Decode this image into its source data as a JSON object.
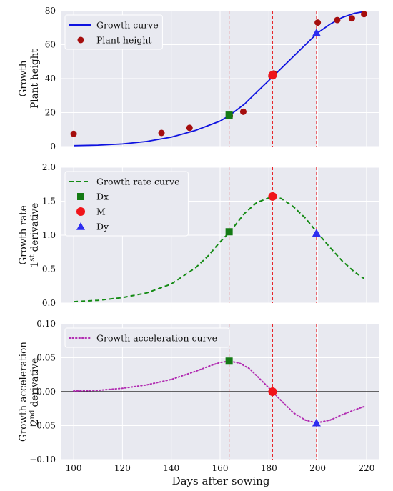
{
  "figure": {
    "xlabel": "Days after sowing",
    "x_ticks": [
      100,
      120,
      140,
      160,
      180,
      200,
      220
    ],
    "xlim": [
      95,
      225
    ],
    "vlines": [
      163.7,
      181.5,
      199.5
    ],
    "colors": {
      "axes_bg": "#E8E9F0",
      "grid": "#FFFFFF",
      "vline": "#E8151B",
      "growth_curve": "#0E12E0",
      "plant_height": "#A50E0E",
      "rate_curve": "#138A13",
      "accel_curve": "#B12BB1",
      "dx_marker": "#147A14",
      "m_marker": "#F0141A",
      "dy_marker": "#2D2DF0",
      "zero_line": "#111111"
    }
  },
  "chart_data": [
    {
      "type": "line",
      "ylabel_lines": [
        "Growth",
        "Plant height"
      ],
      "ylim": [
        0,
        80
      ],
      "y_ticks": [
        "0",
        "20",
        "40",
        "60",
        "80"
      ],
      "y_tick_values": [
        0,
        20,
        40,
        60,
        80
      ],
      "legend": [
        {
          "label": "Growth curve",
          "kind": "line-solid",
          "color_key": "growth_curve"
        },
        {
          "label": "Plant height",
          "kind": "dot",
          "color_key": "plant_height"
        }
      ],
      "series": [
        {
          "name": "Growth curve",
          "style": "solid",
          "color_key": "growth_curve",
          "x": [
            100,
            110,
            120,
            130,
            140,
            150,
            160,
            164,
            170,
            175,
            181.5,
            185,
            190,
            195,
            200,
            205,
            210,
            215,
            219
          ],
          "y": [
            0.5,
            0.8,
            1.5,
            3,
            5.5,
            9.5,
            15,
            18.5,
            25,
            32,
            41,
            46,
            53,
            60,
            67,
            72,
            76,
            78.5,
            79.5
          ]
        },
        {
          "name": "Plant height",
          "style": "dots",
          "color_key": "plant_height",
          "x": [
            100,
            136,
            147.5,
            164,
            169.5,
            181,
            182,
            200,
            208,
            214,
            219
          ],
          "y": [
            7.5,
            8,
            11,
            18,
            20.5,
            41.5,
            43,
            73,
            74.5,
            75.5,
            78
          ]
        }
      ],
      "markers": [
        {
          "name": "Dx",
          "shape": "square",
          "x": 163.7,
          "y": 18.5,
          "color_key": "dx_marker"
        },
        {
          "name": "M",
          "shape": "circle",
          "x": 181.5,
          "y": 42,
          "color_key": "m_marker"
        },
        {
          "name": "Dy",
          "shape": "triangle",
          "x": 199.5,
          "y": 67,
          "color_key": "dy_marker"
        }
      ]
    },
    {
      "type": "line",
      "ylabel_lines": [
        "Growth rate",
        "1^st derivative"
      ],
      "ylim": [
        0,
        2.0
      ],
      "y_ticks": [
        "0.0",
        "0.5",
        "1.0",
        "1.5",
        "2.0"
      ],
      "y_tick_values": [
        0,
        0.5,
        1.0,
        1.5,
        2.0
      ],
      "legend": [
        {
          "label": "Growth rate curve",
          "kind": "line-dashed",
          "color_key": "rate_curve"
        },
        {
          "label": "Dx",
          "kind": "square",
          "color_key": "dx_marker"
        },
        {
          "label": "M",
          "kind": "circle",
          "color_key": "m_marker"
        },
        {
          "label": "Dy",
          "kind": "triangle",
          "color_key": "dy_marker"
        }
      ],
      "series": [
        {
          "name": "Growth rate curve",
          "style": "dashed",
          "color_key": "rate_curve",
          "x": [
            100,
            110,
            120,
            130,
            140,
            150,
            155,
            160,
            164,
            170,
            175,
            181.5,
            185,
            190,
            195,
            200,
            205,
            210,
            215,
            219
          ],
          "y": [
            0.02,
            0.04,
            0.08,
            0.15,
            0.28,
            0.52,
            0.69,
            0.9,
            1.05,
            1.32,
            1.48,
            1.57,
            1.54,
            1.42,
            1.25,
            1.03,
            0.82,
            0.62,
            0.46,
            0.36
          ]
        }
      ],
      "markers": [
        {
          "name": "Dx",
          "shape": "square",
          "x": 163.7,
          "y": 1.05,
          "color_key": "dx_marker"
        },
        {
          "name": "M",
          "shape": "circle",
          "x": 181.5,
          "y": 1.57,
          "color_key": "m_marker"
        },
        {
          "name": "Dy",
          "shape": "triangle",
          "x": 199.5,
          "y": 1.03,
          "color_key": "dy_marker"
        }
      ]
    },
    {
      "type": "line",
      "ylabel_lines": [
        "Growth acceleration",
        "2^nd derivative"
      ],
      "ylim": [
        -0.1,
        0.1
      ],
      "y_ticks": [
        "−0.10",
        "−0.05",
        "0.00",
        "0.05",
        "0.10"
      ],
      "y_tick_values": [
        -0.1,
        -0.05,
        0,
        0.05,
        0.1
      ],
      "zero_line": true,
      "legend": [
        {
          "label": "Growth acceleration curve",
          "kind": "line-dotted",
          "color_key": "accel_curve"
        }
      ],
      "series": [
        {
          "name": "Growth acceleration curve",
          "style": "dotted",
          "color_key": "accel_curve",
          "x": [
            100,
            110,
            120,
            130,
            140,
            150,
            155,
            160,
            164,
            168,
            172,
            176,
            181.5,
            185,
            190,
            195,
            199.5,
            205,
            210,
            215,
            219
          ],
          "y": [
            0.001,
            0.002,
            0.005,
            0.01,
            0.018,
            0.03,
            0.037,
            0.043,
            0.045,
            0.042,
            0.034,
            0.02,
            0.0,
            -0.013,
            -0.031,
            -0.042,
            -0.046,
            -0.042,
            -0.034,
            -0.027,
            -0.022
          ]
        }
      ],
      "markers": [
        {
          "name": "Dx",
          "shape": "square",
          "x": 163.7,
          "y": 0.045,
          "color_key": "dx_marker"
        },
        {
          "name": "M",
          "shape": "circle",
          "x": 181.5,
          "y": 0.0,
          "color_key": "m_marker"
        },
        {
          "name": "Dy",
          "shape": "triangle",
          "x": 199.5,
          "y": -0.046,
          "color_key": "dy_marker"
        }
      ]
    }
  ]
}
